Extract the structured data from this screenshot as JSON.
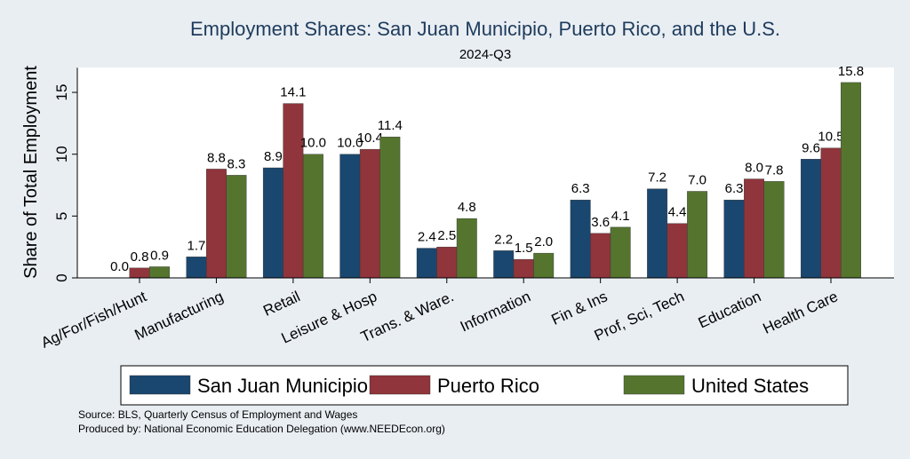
{
  "chart_data": {
    "type": "bar",
    "title": "Employment Shares: San Juan Municipio, Puerto Rico, and the U.S.",
    "subtitle": "2024-Q3",
    "ylabel": "Share of Total Employment",
    "xlabel": "",
    "ylim": [
      0,
      17
    ],
    "yticks": [
      0,
      5,
      10,
      15
    ],
    "grid": false,
    "legend_position": "bottom",
    "categories": [
      "Ag/For/Fish/Hunt",
      "Manufacturing",
      "Retail",
      "Leisure & Hosp",
      "Trans. & Ware.",
      "Information",
      "Fin & Ins",
      "Prof, Sci, Tech",
      "Education",
      "Health Care"
    ],
    "series": [
      {
        "name": "San Juan Municipio",
        "color": "#1a476f",
        "values": [
          0.0,
          1.7,
          8.9,
          10.0,
          2.4,
          2.2,
          6.3,
          7.2,
          6.3,
          9.6
        ]
      },
      {
        "name": "Puerto Rico",
        "color": "#90353b",
        "values": [
          0.8,
          8.8,
          14.1,
          10.4,
          2.5,
          1.5,
          3.6,
          4.4,
          8.0,
          10.5
        ]
      },
      {
        "name": "United States",
        "color": "#55752f",
        "values": [
          0.9,
          8.3,
          10.0,
          11.4,
          4.8,
          2.0,
          4.1,
          7.0,
          7.8,
          15.8
        ]
      }
    ],
    "notes": [
      "Source: BLS, Quarterly Census of Employment and Wages",
      "Produced by: National Economic Education Delegation (www.NEEDEcon.org)"
    ]
  }
}
